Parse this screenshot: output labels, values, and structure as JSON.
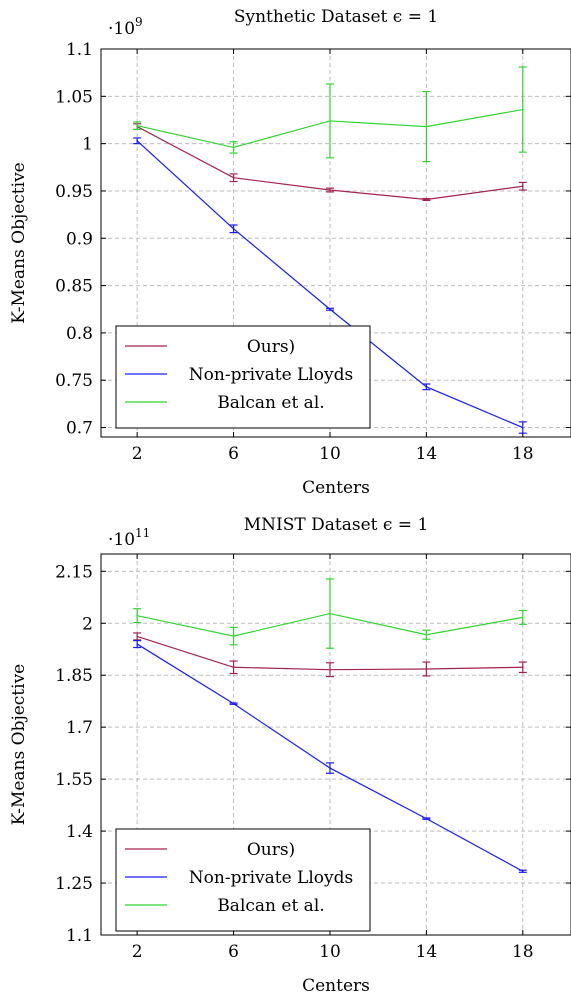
{
  "chart_data": [
    {
      "type": "line",
      "title": "Synthetic Dataset ϵ = 1",
      "scale_label": "·10",
      "scale_exponent": "9",
      "xlabel": "Centers",
      "ylabel": "K-Means Objective",
      "x": [
        2,
        6,
        10,
        14,
        18
      ],
      "x_ticks": [
        "2",
        "6",
        "10",
        "14",
        "18"
      ],
      "xlim": [
        0.5,
        20
      ],
      "ylim": [
        0.69,
        1.1
      ],
      "y_ticks": [
        {
          "value": 0.7,
          "label": "0.7"
        },
        {
          "value": 0.75,
          "label": "0.75"
        },
        {
          "value": 0.8,
          "label": "0.8"
        },
        {
          "value": 0.85,
          "label": "0.85"
        },
        {
          "value": 0.9,
          "label": "0.9"
        },
        {
          "value": 0.95,
          "label": "0.95"
        },
        {
          "value": 1.0,
          "label": "1"
        },
        {
          "value": 1.05,
          "label": "1.05"
        },
        {
          "value": 1.1,
          "label": "1.1"
        }
      ],
      "grid": true,
      "legend_position": "bottom-left",
      "series": [
        {
          "name": "Ours)",
          "color": "#a3224e",
          "values": [
            1.018,
            0.964,
            0.951,
            0.941,
            0.955
          ],
          "errors": [
            0.003,
            0.004,
            0.002,
            0.001,
            0.004
          ]
        },
        {
          "name": "Non-private Lloyds",
          "color": "#1a1aff",
          "values": [
            1.003,
            0.91,
            0.825,
            0.743,
            0.7
          ],
          "errors": [
            0.003,
            0.004,
            0.001,
            0.003,
            0.006
          ]
        },
        {
          "name": "Balcan et al.",
          "color": "#2ed62e",
          "values": [
            1.019,
            0.996,
            1.024,
            1.018,
            1.036
          ],
          "errors": [
            0.004,
            0.006,
            0.039,
            0.037,
            0.045
          ]
        }
      ]
    },
    {
      "type": "line",
      "title": "MNIST Dataset ϵ = 1",
      "scale_label": "·10",
      "scale_exponent": "11",
      "xlabel": "Centers",
      "ylabel": "K-Means Objective",
      "x": [
        2,
        6,
        10,
        14,
        18
      ],
      "x_ticks": [
        "2",
        "6",
        "10",
        "14",
        "18"
      ],
      "xlim": [
        0.5,
        20
      ],
      "ylim": [
        1.1,
        2.2
      ],
      "y_ticks": [
        {
          "value": 1.1,
          "label": "1.1"
        },
        {
          "value": 1.25,
          "label": "1.25"
        },
        {
          "value": 1.4,
          "label": "1.4"
        },
        {
          "value": 1.55,
          "label": "1.55"
        },
        {
          "value": 1.7,
          "label": "1.7"
        },
        {
          "value": 1.85,
          "label": "1.85"
        },
        {
          "value": 2.0,
          "label": "2"
        },
        {
          "value": 2.15,
          "label": "2.15"
        }
      ],
      "grid": true,
      "legend_position": "bottom-left",
      "series": [
        {
          "name": "Ours)",
          "color": "#a3224e",
          "values": [
            1.962,
            1.873,
            1.866,
            1.868,
            1.873
          ],
          "errors": [
            0.01,
            0.018,
            0.02,
            0.02,
            0.015
          ]
        },
        {
          "name": "Non-private Lloyds",
          "color": "#1a1aff",
          "values": [
            1.94,
            1.768,
            1.582,
            1.436,
            1.284
          ],
          "errors": [
            0.01,
            0.002,
            0.015,
            0.002,
            0.003
          ]
        },
        {
          "name": "Balcan et al.",
          "color": "#2ed62e",
          "values": [
            2.022,
            1.963,
            2.028,
            1.967,
            2.017
          ],
          "errors": [
            0.02,
            0.025,
            0.1,
            0.013,
            0.02
          ]
        }
      ]
    }
  ]
}
